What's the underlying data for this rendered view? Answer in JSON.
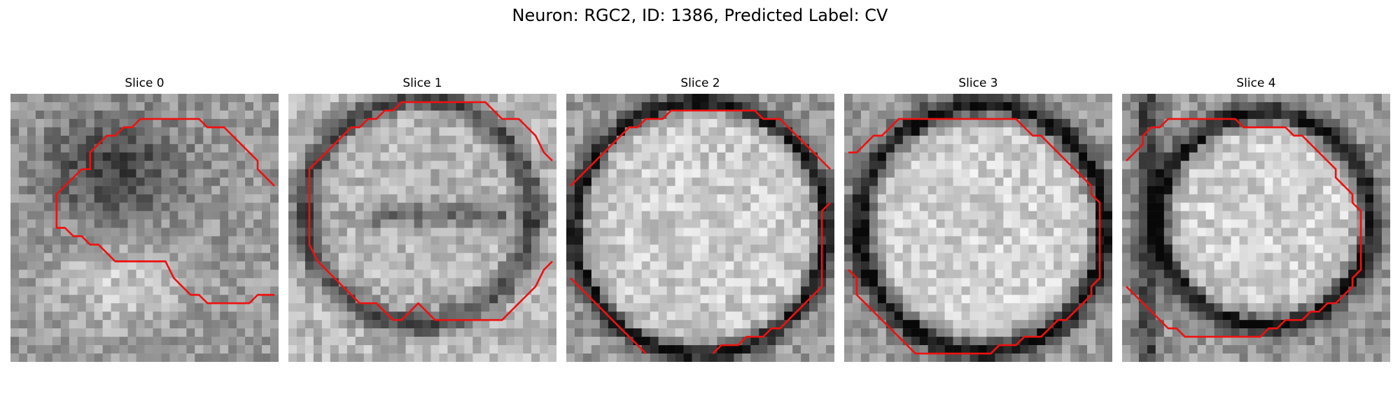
{
  "title": "Neuron: RGC2, ID: 1386, Predicted Label: CV",
  "contour_color": "#ee1111",
  "panels": [
    {
      "label": "Slice 0"
    },
    {
      "label": "Slice 1"
    },
    {
      "label": "Slice 2"
    },
    {
      "label": "Slice 3"
    },
    {
      "label": "Slice 4"
    }
  ]
}
